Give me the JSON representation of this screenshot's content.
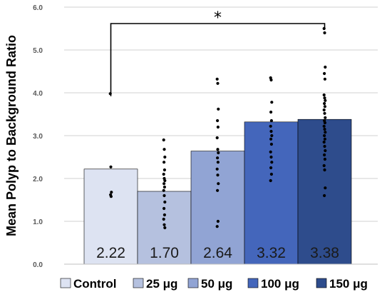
{
  "chart_data": {
    "type": "bar",
    "ylabel": "Mean Polyp to Background Ratio",
    "xlabel": "",
    "ylim": [
      0,
      6
    ],
    "yticks": [
      "0.0",
      "1.0",
      "2.0",
      "3.0",
      "4.0",
      "5.0",
      "6.0"
    ],
    "grid": true,
    "legend_position": "bottom",
    "categories": [
      "Control",
      "25 μg",
      "50 μg",
      "100 μg",
      "150 μg"
    ],
    "values": [
      2.22,
      1.7,
      2.64,
      3.32,
      3.38
    ],
    "data_labels": [
      "2.22",
      "1.70",
      "2.64",
      "3.32",
      "3.38"
    ],
    "colors": [
      "#dde3f2",
      "#b5c1df",
      "#91a4d4",
      "#4466bb",
      "#2e4c8c"
    ],
    "points": [
      [
        3.98,
        2.27,
        1.68,
        1.62,
        1.58
      ],
      [
        2.9,
        2.68,
        2.5,
        2.38,
        2.2,
        2.1,
        2.0,
        1.95,
        1.88,
        1.8,
        1.72,
        1.6,
        1.45,
        1.3,
        1.15,
        1.05,
        0.92,
        0.85
      ],
      [
        4.32,
        4.22,
        3.62,
        3.35,
        3.2,
        2.95,
        2.68,
        2.6,
        2.48,
        2.38,
        2.22,
        2.08,
        1.88,
        1.72,
        1.0,
        0.88
      ],
      [
        4.35,
        4.3,
        3.78,
        3.55,
        3.35,
        3.22,
        3.1,
        3.0,
        2.92,
        2.8,
        2.62,
        2.5,
        2.38,
        2.25,
        2.1,
        1.95
      ],
      [
        5.5,
        5.4,
        4.6,
        4.45,
        4.32,
        3.95,
        3.88,
        3.82,
        3.75,
        3.68,
        3.6,
        3.52,
        3.42,
        3.35,
        3.3,
        3.22,
        3.15,
        3.08,
        3.0,
        2.92,
        2.85,
        2.75,
        2.65,
        2.55,
        2.45,
        2.3,
        2.2,
        1.78,
        1.6
      ]
    ],
    "significance": {
      "from": 0,
      "to": 4,
      "symbol": "*"
    }
  }
}
